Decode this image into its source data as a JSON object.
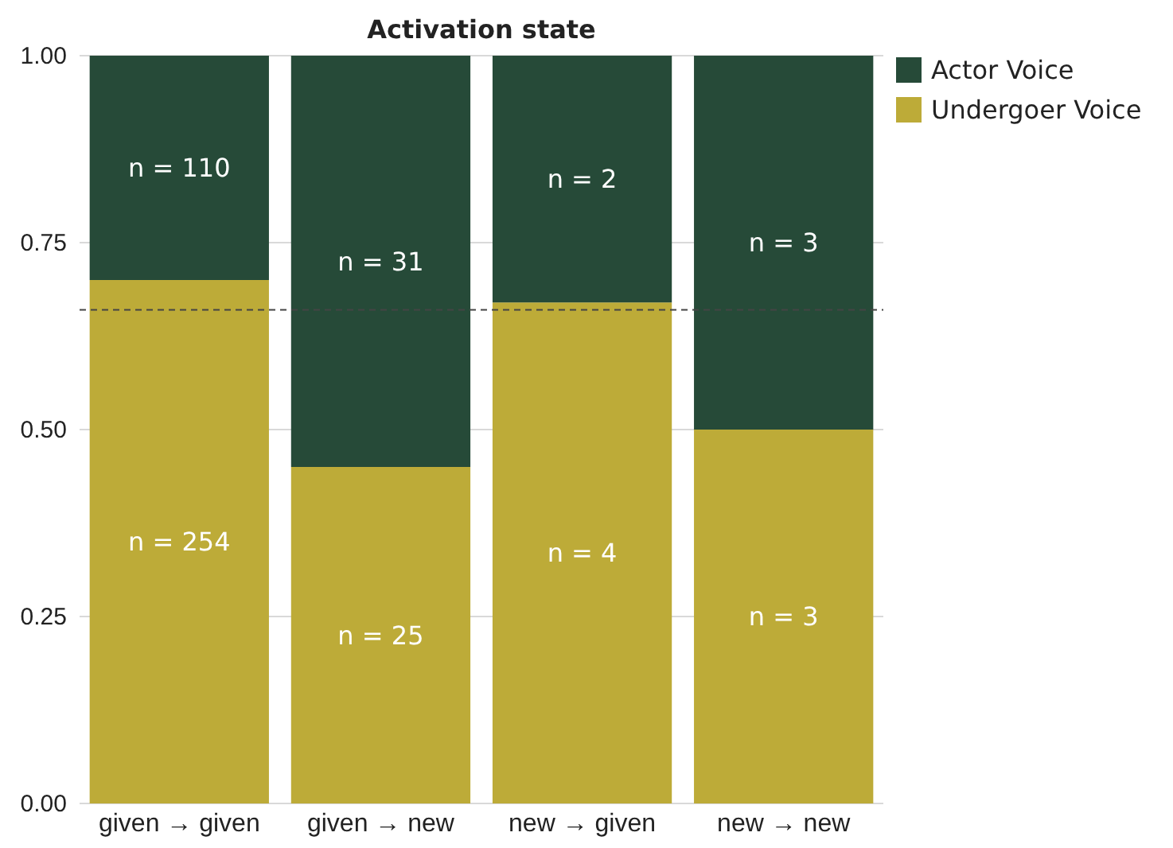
{
  "chart_data": {
    "type": "bar",
    "title": "Activation state",
    "stacked": true,
    "categories": [
      "given → given",
      "given → new",
      "new → given",
      "new → new"
    ],
    "series": [
      {
        "name": "Undergoer Voice",
        "color": "#bdab38",
        "values": [
          0.7,
          0.45,
          0.67,
          0.5
        ]
      },
      {
        "name": "Actor Voice",
        "color": "#264a38",
        "values": [
          0.3,
          0.55,
          0.33,
          0.5
        ]
      }
    ],
    "annotations": [
      "n = 254",
      "n = 25",
      "n = 4",
      "n = 3",
      "n = 110",
      "n = 31",
      "n = 2",
      "n = 3"
    ],
    "ylim": [
      0,
      1
    ],
    "yticks": [
      {
        "value": 0,
        "label": "0.00"
      },
      {
        "value": 0.25,
        "label": "0.25"
      },
      {
        "value": 0.5,
        "label": "0.50"
      },
      {
        "value": 0.75,
        "label": "0.75"
      },
      {
        "value": 1,
        "label": "1.00"
      }
    ],
    "grid": "y",
    "legend": "top right",
    "ref_lines": [
      {
        "axis": "y",
        "value": 0.66,
        "color": "#444444",
        "line_style": "dashed"
      }
    ]
  }
}
